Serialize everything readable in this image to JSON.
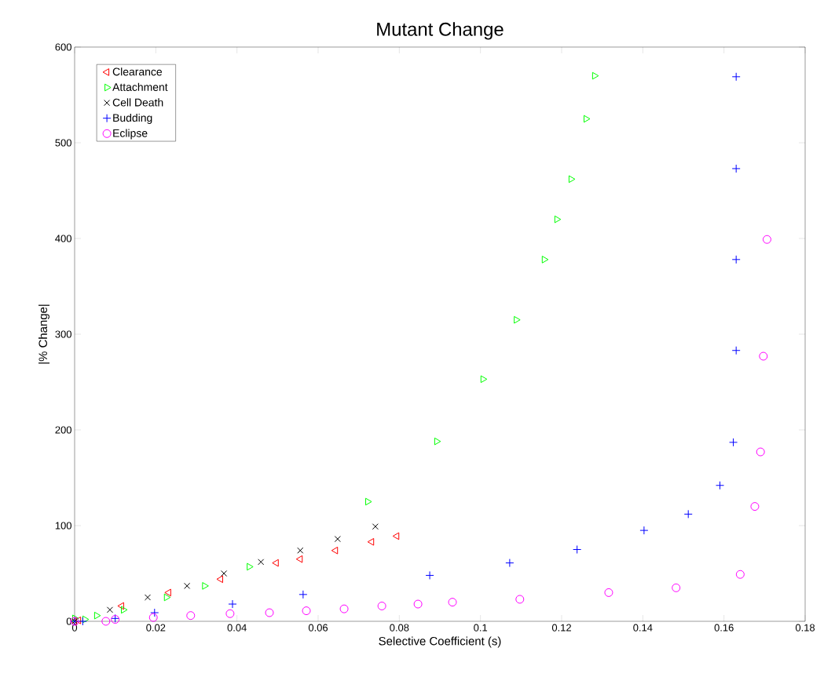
{
  "chart_data": {
    "type": "scatter",
    "title": "Mutant Change",
    "xlabel": "Selective Coefficient (s)",
    "ylabel": "|% Change|",
    "xlim": [
      0,
      0.18
    ],
    "ylim": [
      0,
      600
    ],
    "xticks": [
      0,
      0.02,
      0.04,
      0.06,
      0.08,
      0.1,
      0.12,
      0.14,
      0.16,
      0.18
    ],
    "yticks": [
      0,
      100,
      200,
      300,
      400,
      500,
      600
    ],
    "grid": false,
    "legend": "top left",
    "series": [
      {
        "name": "Clearance",
        "color": "#ff0000",
        "marker": "triangle-left",
        "x": [
          0,
          0.001,
          0.0116,
          0.0232,
          0.036,
          0.0497,
          0.0556,
          0.0643,
          0.0732,
          0.0794
        ],
        "values": [
          0,
          1,
          16,
          30,
          44,
          61,
          65,
          74,
          83,
          89
        ]
      },
      {
        "name": "Attachment",
        "color": "#00ff00",
        "marker": "triangle-right",
        "x": [
          0,
          0.0025,
          0.0054,
          0.012,
          0.0226,
          0.032,
          0.043,
          0.0722,
          0.0892,
          0.1006,
          0.1088,
          0.1157,
          0.1188,
          0.1223,
          0.126,
          0.1281
        ],
        "values": [
          3,
          2,
          6,
          12,
          25,
          37,
          57,
          125,
          188,
          253,
          315,
          378,
          420,
          462,
          525,
          570
        ]
      },
      {
        "name": "Cell Death",
        "color": "#000000",
        "marker": "cross",
        "x": [
          0,
          0.0087,
          0.018,
          0.0277,
          0.0368,
          0.0459,
          0.0556,
          0.0648,
          0.0741
        ],
        "values": [
          0,
          12,
          25,
          37,
          50,
          62,
          74,
          86,
          99
        ]
      },
      {
        "name": "Budding",
        "color": "#0000ff",
        "marker": "plus",
        "x": [
          0,
          0.002,
          0.01,
          0.0197,
          0.0389,
          0.0563,
          0.0875,
          0.1072,
          0.1238,
          0.1403,
          0.1512,
          0.159,
          0.1623,
          0.163,
          0.163,
          0.163,
          0.163
        ],
        "values": [
          0,
          0,
          3,
          9,
          18,
          28,
          48,
          61,
          75,
          95,
          112,
          142,
          187,
          283,
          378,
          473,
          569
        ]
      },
      {
        "name": "Eclipse",
        "color": "#ff00ff",
        "marker": "circle",
        "x": [
          0,
          0.0077,
          0.01,
          0.0194,
          0.0286,
          0.0383,
          0.048,
          0.0571,
          0.0664,
          0.0757,
          0.0846,
          0.0931,
          0.1097,
          0.1316,
          0.1482,
          0.164,
          0.1676,
          0.169,
          0.1697,
          0.1706
        ],
        "values": [
          0,
          0,
          2,
          4,
          6,
          8,
          9,
          11,
          13,
          16,
          18,
          20,
          23,
          30,
          35,
          49,
          120,
          177,
          277,
          399
        ]
      }
    ]
  }
}
